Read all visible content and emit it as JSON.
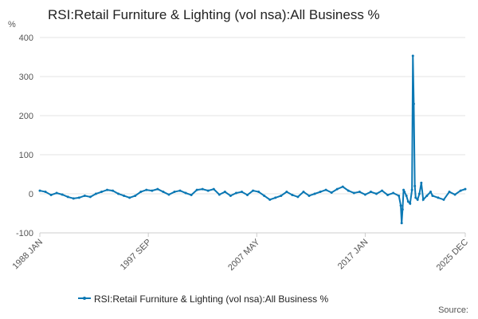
{
  "chart_data": {
    "type": "line",
    "title": "RSI:Retail Furniture & Lighting (vol nsa):All Business %",
    "y_label": "%",
    "source": "Source:",
    "x": [
      1988.0,
      1988.5,
      1989.0,
      1989.5,
      1990.0,
      1990.5,
      1991.0,
      1991.5,
      1992.0,
      1992.5,
      1993.0,
      1993.5,
      1994.0,
      1994.5,
      1995.0,
      1995.5,
      1996.0,
      1996.5,
      1997.0,
      1997.5,
      1998.0,
      1998.5,
      1999.0,
      1999.5,
      2000.0,
      2000.5,
      2001.0,
      2001.5,
      2002.0,
      2002.5,
      2003.0,
      2003.5,
      2004.0,
      2004.5,
      2005.0,
      2005.5,
      2006.0,
      2006.5,
      2007.0,
      2007.5,
      2008.0,
      2008.5,
      2009.0,
      2009.5,
      2010.0,
      2010.5,
      2011.0,
      2011.5,
      2012.0,
      2012.5,
      2013.0,
      2013.5,
      2014.0,
      2014.5,
      2015.0,
      2015.5,
      2016.0,
      2016.5,
      2017.0,
      2017.5,
      2018.0,
      2018.5,
      2019.0,
      2019.5,
      2020.0,
      2020.17,
      2020.25,
      2020.33,
      2020.42,
      2020.5,
      2020.67,
      2020.83,
      2021.0,
      2021.17,
      2021.25,
      2021.33,
      2021.42,
      2021.5,
      2021.67,
      2021.83,
      2022.0,
      2022.17,
      2022.5,
      2022.83,
      2023.0,
      2023.5,
      2024.0,
      2024.5,
      2025.0,
      2025.5,
      2025.917
    ],
    "series": [
      {
        "name": "RSI:Retail Furniture & Lighting (vol nsa):All Business %",
        "color": "#0b78b4",
        "values": [
          8,
          5,
          -3,
          2,
          -2,
          -8,
          -12,
          -10,
          -5,
          -8,
          0,
          5,
          10,
          8,
          0,
          -5,
          -10,
          -5,
          5,
          10,
          8,
          12,
          5,
          -2,
          5,
          8,
          2,
          -3,
          10,
          12,
          8,
          12,
          -2,
          5,
          -5,
          2,
          5,
          -3,
          8,
          5,
          -5,
          -15,
          -10,
          -5,
          5,
          -3,
          -8,
          5,
          -5,
          0,
          5,
          10,
          3,
          12,
          18,
          8,
          2,
          5,
          -2,
          5,
          0,
          8,
          -3,
          2,
          -5,
          -30,
          -75,
          -40,
          10,
          5,
          -5,
          -20,
          -25,
          10,
          353,
          230,
          20,
          -10,
          -15,
          0,
          28,
          -15,
          -5,
          5,
          -5,
          -10,
          -15,
          5,
          -2,
          8,
          12
        ]
      }
    ],
    "xlim": [
      1988.0,
      2025.917
    ],
    "xticks": [
      {
        "value": 1988.0,
        "label": "1988 JAN"
      },
      {
        "value": 1997.667,
        "label": "1997 SEP"
      },
      {
        "value": 2007.333,
        "label": "2007 MAY"
      },
      {
        "value": 2017.0,
        "label": "2017 JAN"
      },
      {
        "value": 2025.917,
        "label": "2025 DEC"
      }
    ],
    "ylim": [
      -100,
      400
    ],
    "yticks": [
      -100,
      0,
      100,
      200,
      300,
      400
    ],
    "grid": true,
    "legend": "bottom"
  }
}
